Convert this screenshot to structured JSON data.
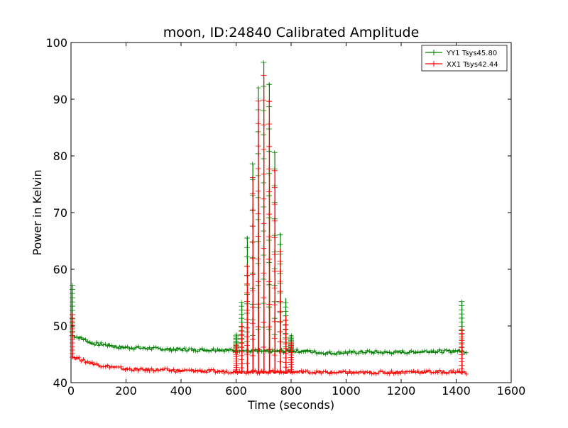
{
  "chart_data": {
    "type": "line",
    "title": "moon, ID:24840 Calibrated Amplitude",
    "xlabel": "Time (seconds)",
    "ylabel": "Power in Kelvin",
    "xlim": [
      0,
      1600
    ],
    "ylim": [
      40,
      100
    ],
    "xticks": [
      0,
      200,
      400,
      600,
      800,
      1000,
      1200,
      1400,
      1600
    ],
    "yticks": [
      40,
      50,
      60,
      70,
      80,
      90,
      100
    ],
    "grid": false,
    "legend_position": "top-right",
    "series": [
      {
        "name": "YY1 Tsys45.80",
        "color": "#008000",
        "marker": "+",
        "baseline": [
          [
            5,
            48.3
          ],
          [
            30,
            48.0
          ],
          [
            50,
            47.6
          ],
          [
            70,
            47.0
          ],
          [
            100,
            46.8
          ],
          [
            140,
            46.6
          ],
          [
            170,
            46.3
          ],
          [
            200,
            46.2
          ],
          [
            260,
            46.1
          ],
          [
            300,
            46.0
          ],
          [
            350,
            45.9
          ],
          [
            400,
            45.9
          ],
          [
            450,
            45.8
          ],
          [
            500,
            45.8
          ],
          [
            550,
            45.8
          ],
          [
            600,
            45.7
          ],
          [
            650,
            45.6
          ],
          [
            700,
            45.5
          ],
          [
            750,
            45.5
          ],
          [
            800,
            45.6
          ],
          [
            850,
            45.6
          ],
          [
            900,
            45.3
          ],
          [
            950,
            45.2
          ],
          [
            1000,
            45.3
          ],
          [
            1050,
            45.4
          ],
          [
            1100,
            45.4
          ],
          [
            1150,
            45.3
          ],
          [
            1200,
            45.4
          ],
          [
            1250,
            45.4
          ],
          [
            1300,
            45.6
          ],
          [
            1350,
            45.5
          ],
          [
            1400,
            45.6
          ],
          [
            1440,
            45.5
          ]
        ],
        "spikes": [
          [
            5,
            57.2
          ],
          [
            600,
            48.5
          ],
          [
            620,
            54.2
          ],
          [
            640,
            65.5
          ],
          [
            660,
            78.6
          ],
          [
            680,
            92.0
          ],
          [
            700,
            96.5
          ],
          [
            720,
            92.6
          ],
          [
            740,
            80.6
          ],
          [
            760,
            66.1
          ],
          [
            780,
            54.9
          ],
          [
            800,
            48.3
          ],
          [
            1420,
            54.3
          ]
        ]
      },
      {
        "name": "XX1 Tsys42.44",
        "color": "#ff0000",
        "marker": "+",
        "baseline": [
          [
            5,
            44.5
          ],
          [
            30,
            44.2
          ],
          [
            50,
            43.8
          ],
          [
            70,
            43.5
          ],
          [
            100,
            43.1
          ],
          [
            140,
            42.9
          ],
          [
            170,
            42.6
          ],
          [
            200,
            42.4
          ],
          [
            260,
            42.3
          ],
          [
            300,
            42.3
          ],
          [
            350,
            42.2
          ],
          [
            400,
            42.1
          ],
          [
            450,
            42.1
          ],
          [
            500,
            42.0
          ],
          [
            550,
            42.0
          ],
          [
            600,
            41.9
          ],
          [
            650,
            41.9
          ],
          [
            700,
            41.9
          ],
          [
            750,
            41.9
          ],
          [
            800,
            41.9
          ],
          [
            850,
            41.9
          ],
          [
            900,
            41.8
          ],
          [
            950,
            41.8
          ],
          [
            1000,
            41.8
          ],
          [
            1050,
            41.7
          ],
          [
            1100,
            41.8
          ],
          [
            1150,
            41.8
          ],
          [
            1200,
            41.9
          ],
          [
            1250,
            41.9
          ],
          [
            1300,
            41.9
          ],
          [
            1350,
            41.9
          ],
          [
            1400,
            41.9
          ],
          [
            1440,
            41.7
          ]
        ],
        "spikes": [
          [
            5,
            52.0
          ],
          [
            600,
            46.5
          ],
          [
            620,
            50.5
          ],
          [
            640,
            60.5
          ],
          [
            660,
            76.2
          ],
          [
            680,
            89.7
          ],
          [
            700,
            94.2
          ],
          [
            720,
            89.6
          ],
          [
            740,
            77.4
          ],
          [
            760,
            63.2
          ],
          [
            780,
            51.8
          ],
          [
            800,
            47.0
          ],
          [
            1420,
            49.3
          ]
        ]
      }
    ]
  }
}
